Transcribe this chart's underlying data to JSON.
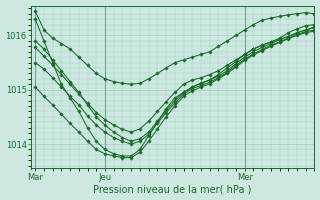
{
  "background_color": "#cce8e0",
  "grid_color": "#a8ccc4",
  "line_color": "#1a6b2a",
  "marker_color": "#1a6b2a",
  "xlabel": "Pression niveau de la mer( hPa )",
  "xlabel_fontsize": 7,
  "yticks": [
    1014,
    1015,
    1016
  ],
  "xtick_labels": [
    "Mar",
    "Jeu",
    "Mer"
  ],
  "xtick_positions": [
    0,
    8,
    24
  ],
  "xlim": [
    -0.5,
    32
  ],
  "ylim": [
    1013.55,
    1016.55
  ],
  "series": [
    [
      1016.45,
      1016.1,
      1015.95,
      1015.85,
      1015.75,
      1015.6,
      1015.45,
      1015.3,
      1015.2,
      1015.15,
      1015.12,
      1015.1,
      1015.12,
      1015.2,
      1015.3,
      1015.4,
      1015.5,
      1015.55,
      1015.6,
      1015.65,
      1015.7,
      1015.8,
      1015.9,
      1016.0,
      1016.1,
      1016.2,
      1016.28,
      1016.32,
      1016.35,
      1016.38,
      1016.4,
      1016.42,
      1016.4
    ],
    [
      1016.3,
      1015.9,
      1015.5,
      1015.1,
      1014.85,
      1014.6,
      1014.3,
      1014.05,
      1013.9,
      1013.82,
      1013.78,
      1013.78,
      1013.9,
      1014.15,
      1014.4,
      1014.65,
      1014.85,
      1014.95,
      1015.05,
      1015.12,
      1015.18,
      1015.28,
      1015.4,
      1015.52,
      1015.65,
      1015.75,
      1015.82,
      1015.88,
      1015.95,
      1016.05,
      1016.12,
      1016.18,
      1016.2
    ],
    [
      1015.9,
      1015.75,
      1015.55,
      1015.35,
      1015.15,
      1014.95,
      1014.72,
      1014.5,
      1014.35,
      1014.22,
      1014.12,
      1014.05,
      1014.1,
      1014.22,
      1014.42,
      1014.62,
      1014.8,
      1014.95,
      1015.05,
      1015.12,
      1015.18,
      1015.25,
      1015.35,
      1015.48,
      1015.6,
      1015.7,
      1015.78,
      1015.85,
      1015.92,
      1015.98,
      1016.05,
      1016.1,
      1016.15
    ],
    [
      1015.5,
      1015.38,
      1015.22,
      1015.05,
      1014.88,
      1014.72,
      1014.52,
      1014.35,
      1014.22,
      1014.12,
      1014.05,
      1014.0,
      1014.05,
      1014.18,
      1014.38,
      1014.58,
      1014.75,
      1014.92,
      1015.02,
      1015.08,
      1015.14,
      1015.22,
      1015.32,
      1015.45,
      1015.56,
      1015.66,
      1015.74,
      1015.82,
      1015.88,
      1015.95,
      1016.02,
      1016.07,
      1016.1
    ],
    [
      1015.05,
      1014.88,
      1014.72,
      1014.55,
      1014.38,
      1014.22,
      1014.05,
      1013.9,
      1013.82,
      1013.78,
      1013.75,
      1013.75,
      1013.85,
      1014.05,
      1014.28,
      1014.5,
      1014.7,
      1014.88,
      1014.98,
      1015.05,
      1015.11,
      1015.2,
      1015.3,
      1015.42,
      1015.54,
      1015.64,
      1015.72,
      1015.8,
      1015.87,
      1015.94,
      1016.0,
      1016.05,
      1016.08
    ],
    [
      1015.78,
      1015.62,
      1015.45,
      1015.28,
      1015.1,
      1014.92,
      1014.75,
      1014.58,
      1014.45,
      1014.35,
      1014.27,
      1014.22,
      1014.28,
      1014.42,
      1014.6,
      1014.78,
      1014.95,
      1015.1,
      1015.18,
      1015.22,
      1015.28,
      1015.35,
      1015.45,
      1015.55,
      1015.65,
      1015.75,
      1015.82,
      1015.88,
      1015.93,
      1015.98,
      1016.05,
      1016.1,
      1016.15
    ]
  ]
}
